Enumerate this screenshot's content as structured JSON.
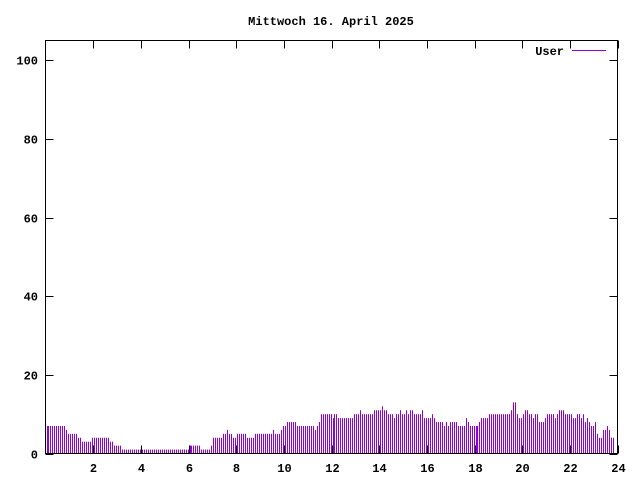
{
  "chart_data": {
    "type": "bar",
    "title": "Mittwoch 16. April 2025",
    "xlabel": "",
    "ylabel": "",
    "xlim": [
      0,
      24
    ],
    "ylim": [
      0,
      105
    ],
    "xticks": [
      2,
      4,
      6,
      8,
      10,
      12,
      14,
      16,
      18,
      20,
      22,
      24
    ],
    "yticks": [
      0,
      20,
      40,
      60,
      80,
      100
    ],
    "grid": false,
    "legend_position": "top-right",
    "interval_minutes": 5,
    "series": [
      {
        "name": "User",
        "color": "#9400d3",
        "values_by_hour": [
          [
            7,
            7,
            7,
            7,
            7,
            7,
            7,
            7,
            7,
            7,
            6,
            5
          ],
          [
            5,
            5,
            5,
            5,
            4,
            4,
            3,
            3,
            3,
            3,
            3,
            4
          ],
          [
            4,
            4,
            4,
            4,
            4,
            4,
            4,
            4,
            3,
            3,
            2,
            2
          ],
          [
            2,
            2,
            1,
            1,
            1,
            1,
            1,
            1,
            1,
            1,
            1,
            1
          ],
          [
            1,
            1,
            1,
            1,
            1,
            1,
            1,
            1,
            1,
            1,
            1,
            1
          ],
          [
            1,
            1,
            1,
            1,
            1,
            1,
            1,
            1,
            1,
            1,
            1,
            1
          ],
          [
            2,
            2,
            2,
            2,
            2,
            2,
            1,
            1,
            1,
            1,
            1,
            2
          ],
          [
            4,
            4,
            4,
            4,
            4,
            5,
            5,
            6,
            5,
            5,
            4,
            4
          ],
          [
            5,
            5,
            5,
            5,
            5,
            4,
            4,
            4,
            4,
            5,
            5,
            5
          ],
          [
            5,
            5,
            5,
            5,
            5,
            5,
            6,
            5,
            5,
            5,
            6,
            7
          ],
          [
            7,
            8,
            8,
            8,
            8,
            8,
            7,
            7,
            7,
            7,
            7,
            7
          ],
          [
            7,
            7,
            7,
            6,
            7,
            8,
            10,
            10,
            10,
            10,
            10,
            10
          ],
          [
            9,
            10,
            10,
            9,
            9,
            9,
            9,
            9,
            9,
            9,
            9,
            10
          ],
          [
            10,
            10,
            11,
            10,
            10,
            10,
            10,
            10,
            10,
            11,
            11,
            11
          ],
          [
            11,
            12,
            11,
            11,
            10,
            10,
            10,
            9,
            10,
            10,
            11,
            10
          ],
          [
            10,
            11,
            10,
            11,
            11,
            10,
            10,
            10,
            10,
            11,
            9,
            9
          ],
          [
            9,
            9,
            10,
            9,
            8,
            8,
            8,
            8,
            7,
            8,
            7,
            8
          ],
          [
            8,
            8,
            8,
            7,
            7,
            7,
            7,
            9,
            8,
            7,
            7,
            7
          ],
          [
            7,
            7,
            8,
            9,
            9,
            9,
            9,
            10,
            10,
            10,
            10,
            10
          ],
          [
            10,
            10,
            10,
            10,
            10,
            10,
            11,
            13,
            13,
            10,
            9,
            9
          ],
          [
            10,
            11,
            11,
            10,
            10,
            9,
            10,
            10,
            8,
            8,
            8,
            9
          ],
          [
            10,
            10,
            10,
            10,
            9,
            10,
            11,
            11,
            11,
            10,
            10,
            10
          ],
          [
            10,
            9,
            9,
            10,
            10,
            9,
            10,
            8,
            9,
            8,
            7,
            7
          ],
          [
            8,
            5,
            4,
            4,
            6,
            6,
            7,
            6,
            4,
            4
          ]
        ]
      }
    ]
  }
}
